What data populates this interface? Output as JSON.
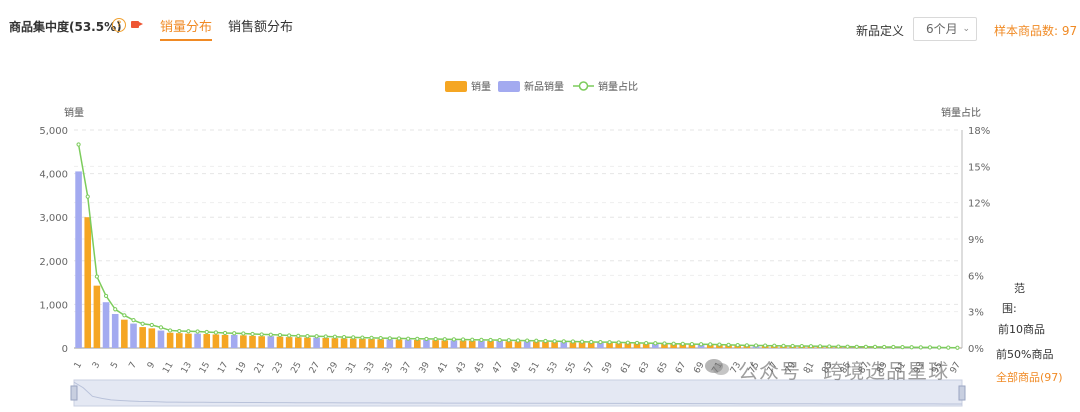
{
  "header": {
    "title": "商品集中度(53.5%)",
    "help_glyph": "?",
    "tabs": [
      {
        "label": "销量分布",
        "active": true
      },
      {
        "label": "销售额分布",
        "active": false
      }
    ],
    "new_product_def_label": "新品定义",
    "period_select": {
      "value": "6个月"
    },
    "sample_count_label": "样本商品数: 97"
  },
  "side_panel": {
    "range_line1": "范",
    "range_line2": "围:",
    "opt_top10": "前10商品",
    "opt_top50": "前50%商品",
    "opt_all": "全部商品(97)"
  },
  "watermark": {
    "text": "公众号 · 跨境选品星球"
  },
  "colors": {
    "sales": "#f5a623",
    "new_sales": "#a3aaf0",
    "share_line": "#7ccc5c",
    "accent": "#f08a24"
  },
  "chart_data": {
    "type": "bar",
    "legend_position": "top-center",
    "grid": true,
    "ylabel": "销量",
    "y2label": "销量占比",
    "ylim": [
      0,
      5000
    ],
    "y2lim": [
      0,
      18
    ],
    "y_ticks": [
      "0",
      "1,000",
      "2,000",
      "3,000",
      "4,000",
      "5,000"
    ],
    "y2_ticks": [
      "0%",
      "3%",
      "6%",
      "9%",
      "12%",
      "15%",
      "18%"
    ],
    "categories": [
      1,
      2,
      3,
      4,
      5,
      6,
      7,
      8,
      9,
      10,
      11,
      12,
      13,
      14,
      15,
      16,
      17,
      18,
      19,
      20,
      21,
      22,
      23,
      24,
      25,
      26,
      27,
      28,
      29,
      30,
      31,
      32,
      33,
      34,
      35,
      36,
      37,
      38,
      39,
      40,
      41,
      42,
      43,
      44,
      45,
      46,
      47,
      48,
      49,
      50,
      51,
      52,
      53,
      54,
      55,
      56,
      57,
      58,
      59,
      60,
      61,
      62,
      63,
      64,
      65,
      66,
      67,
      68,
      69,
      70,
      71,
      72,
      73,
      74,
      75,
      76,
      77,
      78,
      79,
      80,
      81,
      82,
      83,
      84,
      85,
      86,
      87,
      88,
      89,
      90,
      91,
      92,
      93,
      94,
      95,
      96,
      97
    ],
    "x_tick_labels": [
      "1",
      "3",
      "5",
      "7",
      "9",
      "11",
      "13",
      "15",
      "17",
      "19",
      "21",
      "23",
      "25",
      "27",
      "29",
      "31",
      "33",
      "35",
      "37",
      "39",
      "41",
      "43",
      "45",
      "47",
      "49",
      "51",
      "53",
      "55",
      "57",
      "59",
      "61",
      "63",
      "65",
      "67",
      "69",
      "71",
      "73",
      "75",
      "77",
      "79",
      "81",
      "83",
      "85",
      "87",
      "89",
      "91",
      "93",
      "95",
      "97"
    ],
    "series": [
      {
        "name": "销量",
        "kind": "bar",
        "axis": "left",
        "values": [
          0,
          3000,
          1430,
          0,
          0,
          650,
          0,
          480,
          450,
          0,
          350,
          340,
          330,
          0,
          320,
          310,
          300,
          0,
          290,
          280,
          270,
          0,
          260,
          250,
          245,
          240,
          0,
          230,
          225,
          220,
          215,
          210,
          205,
          200,
          0,
          195,
          0,
          185,
          0,
          180,
          175,
          0,
          170,
          165,
          0,
          160,
          0,
          155,
          150,
          0,
          145,
          140,
          135,
          0,
          130,
          125,
          120,
          0,
          115,
          110,
          105,
          100,
          95,
          0,
          90,
          85,
          80,
          75,
          0,
          70,
          65,
          60,
          55,
          50,
          0,
          48,
          46,
          44,
          42,
          40,
          38,
          36,
          34,
          32,
          30,
          28,
          26,
          24,
          22,
          20,
          18,
          16,
          14,
          12,
          10,
          8,
          6
        ]
      },
      {
        "name": "新品销量",
        "kind": "bar",
        "axis": "left",
        "values": [
          4050,
          0,
          0,
          1050,
          780,
          0,
          560,
          0,
          0,
          400,
          0,
          0,
          0,
          330,
          0,
          0,
          0,
          300,
          0,
          0,
          0,
          270,
          0,
          0,
          0,
          0,
          240,
          0,
          0,
          0,
          0,
          0,
          0,
          0,
          200,
          0,
          190,
          0,
          185,
          0,
          0,
          175,
          0,
          0,
          165,
          0,
          160,
          0,
          0,
          150,
          0,
          0,
          0,
          135,
          0,
          0,
          0,
          120,
          0,
          0,
          0,
          0,
          0,
          95,
          0,
          0,
          0,
          0,
          75,
          0,
          0,
          0,
          0,
          0,
          50,
          0,
          0,
          0,
          0,
          0,
          0,
          0,
          0,
          0,
          0,
          0,
          0,
          0,
          0,
          0,
          0,
          0,
          0,
          0,
          0,
          0,
          0
        ]
      },
      {
        "name": "销量占比",
        "kind": "line",
        "axis": "right",
        "values": [
          16.8,
          12.5,
          5.9,
          4.3,
          3.2,
          2.7,
          2.3,
          2.0,
          1.9,
          1.7,
          1.45,
          1.4,
          1.38,
          1.36,
          1.32,
          1.28,
          1.24,
          1.22,
          1.2,
          1.16,
          1.12,
          1.1,
          1.07,
          1.03,
          1.0,
          0.98,
          0.97,
          0.95,
          0.93,
          0.9,
          0.88,
          0.86,
          0.84,
          0.82,
          0.8,
          0.79,
          0.77,
          0.76,
          0.75,
          0.74,
          0.72,
          0.71,
          0.7,
          0.68,
          0.67,
          0.66,
          0.65,
          0.64,
          0.62,
          0.61,
          0.6,
          0.58,
          0.56,
          0.55,
          0.54,
          0.52,
          0.5,
          0.49,
          0.48,
          0.46,
          0.44,
          0.42,
          0.4,
          0.39,
          0.37,
          0.35,
          0.34,
          0.32,
          0.31,
          0.3,
          0.28,
          0.26,
          0.24,
          0.22,
          0.21,
          0.2,
          0.19,
          0.18,
          0.17,
          0.16,
          0.15,
          0.14,
          0.13,
          0.12,
          0.11,
          0.1,
          0.1,
          0.09,
          0.08,
          0.08,
          0.07,
          0.06,
          0.05,
          0.05,
          0.04,
          0.03,
          0.02
        ]
      }
    ]
  }
}
